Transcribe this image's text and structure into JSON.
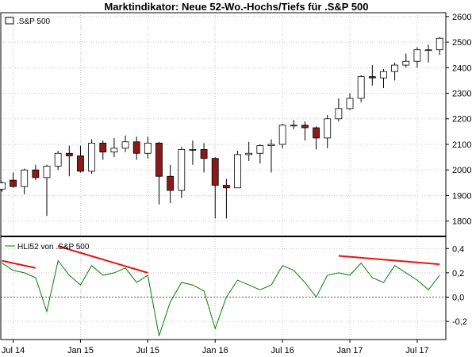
{
  "chart_data": [
    {
      "type": "candlestick",
      "title": "Marktindikator: Neue 52-Wo.-Hochs/Tiefs für .S&P 500",
      "legend": ".S&P 500",
      "legend_position": "top-left",
      "y_ticks": [
        "2600",
        "2500",
        "2400",
        "2300",
        "2200",
        "2100",
        "2000",
        "1900",
        "1800"
      ],
      "y_tick_values": [
        2600,
        2500,
        2400,
        2300,
        2200,
        2100,
        2000,
        1900,
        1800
      ],
      "ylim": [
        1740,
        2615
      ],
      "grid": true,
      "candle_colors": {
        "up": "#ffffff",
        "down": "#8b1a1a",
        "outline": "#000000"
      },
      "series": [
        {
          "name": ".S&P 500",
          "points": [
            {
              "x": "2014-06",
              "o": 1925,
              "h": 1955,
              "l": 1915,
              "c": 1950
            },
            {
              "x": "2014-07",
              "o": 1960,
              "h": 1990,
              "l": 1930,
              "c": 1935
            },
            {
              "x": "2014-08",
              "o": 1935,
              "h": 2005,
              "l": 1905,
              "c": 2000
            },
            {
              "x": "2014-09",
              "o": 2000,
              "h": 2020,
              "l": 1960,
              "c": 1970
            },
            {
              "x": "2014-10",
              "o": 1970,
              "h": 2020,
              "l": 1820,
              "c": 2015
            },
            {
              "x": "2014-11",
              "o": 2015,
              "h": 2075,
              "l": 2000,
              "c": 2065
            },
            {
              "x": "2014-12",
              "o": 2065,
              "h": 2095,
              "l": 1975,
              "c": 2055
            },
            {
              "x": "2015-01",
              "o": 2055,
              "h": 2095,
              "l": 1990,
              "c": 1995
            },
            {
              "x": "2015-02",
              "o": 1995,
              "h": 2120,
              "l": 1985,
              "c": 2105
            },
            {
              "x": "2015-03",
              "o": 2105,
              "h": 2115,
              "l": 2040,
              "c": 2070
            },
            {
              "x": "2015-04",
              "o": 2070,
              "h": 2125,
              "l": 2050,
              "c": 2085
            },
            {
              "x": "2015-05",
              "o": 2085,
              "h": 2135,
              "l": 2070,
              "c": 2110
            },
            {
              "x": "2015-06",
              "o": 2110,
              "h": 2130,
              "l": 2040,
              "c": 2065
            },
            {
              "x": "2015-07",
              "o": 2065,
              "h": 2130,
              "l": 2045,
              "c": 2105
            },
            {
              "x": "2015-08",
              "o": 2105,
              "h": 2110,
              "l": 1865,
              "c": 1975
            },
            {
              "x": "2015-09",
              "o": 1975,
              "h": 2020,
              "l": 1870,
              "c": 1920
            },
            {
              "x": "2015-10",
              "o": 1920,
              "h": 2090,
              "l": 1890,
              "c": 2080
            },
            {
              "x": "2015-11",
              "o": 2080,
              "h": 2115,
              "l": 2020,
              "c": 2080
            },
            {
              "x": "2015-12",
              "o": 2080,
              "h": 2105,
              "l": 1990,
              "c": 2045
            },
            {
              "x": "2016-01",
              "o": 2045,
              "h": 2050,
              "l": 1810,
              "c": 1940
            },
            {
              "x": "2016-02",
              "o": 1940,
              "h": 1965,
              "l": 1810,
              "c": 1930
            },
            {
              "x": "2016-03",
              "o": 1930,
              "h": 2075,
              "l": 1930,
              "c": 2060
            },
            {
              "x": "2016-04",
              "o": 2060,
              "h": 2110,
              "l": 2035,
              "c": 2065
            },
            {
              "x": "2016-05",
              "o": 2065,
              "h": 2100,
              "l": 2025,
              "c": 2095
            },
            {
              "x": "2016-06",
              "o": 2095,
              "h": 2120,
              "l": 1990,
              "c": 2100
            },
            {
              "x": "2016-07",
              "o": 2100,
              "h": 2180,
              "l": 2085,
              "c": 2175
            },
            {
              "x": "2016-08",
              "o": 2175,
              "h": 2195,
              "l": 2160,
              "c": 2175
            },
            {
              "x": "2016-09",
              "o": 2175,
              "h": 2190,
              "l": 2115,
              "c": 2165
            },
            {
              "x": "2016-10",
              "o": 2165,
              "h": 2170,
              "l": 2080,
              "c": 2125
            },
            {
              "x": "2016-11",
              "o": 2125,
              "h": 2215,
              "l": 2085,
              "c": 2200
            },
            {
              "x": "2016-12",
              "o": 2200,
              "h": 2280,
              "l": 2190,
              "c": 2240
            },
            {
              "x": "2017-01",
              "o": 2240,
              "h": 2300,
              "l": 2235,
              "c": 2280
            },
            {
              "x": "2017-02",
              "o": 2280,
              "h": 2370,
              "l": 2265,
              "c": 2365
            },
            {
              "x": "2017-03",
              "o": 2365,
              "h": 2410,
              "l": 2330,
              "c": 2360
            },
            {
              "x": "2017-04",
              "o": 2360,
              "h": 2395,
              "l": 2320,
              "c": 2385
            },
            {
              "x": "2017-05",
              "o": 2385,
              "h": 2420,
              "l": 2350,
              "c": 2410
            },
            {
              "x": "2017-06",
              "o": 2410,
              "h": 2455,
              "l": 2400,
              "c": 2425
            },
            {
              "x": "2017-07",
              "o": 2425,
              "h": 2480,
              "l": 2400,
              "c": 2470
            },
            {
              "x": "2017-08",
              "o": 2470,
              "h": 2490,
              "l": 2420,
              "c": 2470
            },
            {
              "x": "2017-09",
              "o": 2470,
              "h": 2520,
              "l": 2450,
              "c": 2515
            }
          ]
        }
      ]
    },
    {
      "type": "line",
      "legend": "HLI52 von .S&P 500",
      "legend_position": "top-left",
      "y_ticks": [
        "0,4",
        "0,2",
        "0,0",
        "-0,2"
      ],
      "y_tick_values": [
        0.4,
        0.2,
        0.0,
        -0.2
      ],
      "ylim": [
        -0.35,
        0.5
      ],
      "zero_line": "dotted",
      "grid": true,
      "line_color": "#008000",
      "series": [
        {
          "name": "HLI52 von .S&P 500",
          "x": [
            "2014-06",
            "2014-07",
            "2014-08",
            "2014-09",
            "2014-10",
            "2014-11",
            "2014-12",
            "2015-01",
            "2015-02",
            "2015-03",
            "2015-04",
            "2015-05",
            "2015-06",
            "2015-07",
            "2015-08",
            "2015-09",
            "2015-10",
            "2015-11",
            "2015-12",
            "2016-01",
            "2016-02",
            "2016-03",
            "2016-04",
            "2016-05",
            "2016-06",
            "2016-07",
            "2016-08",
            "2016-09",
            "2016-10",
            "2016-11",
            "2016-12",
            "2017-01",
            "2017-02",
            "2017-03",
            "2017-04",
            "2017-05",
            "2017-06",
            "2017-07",
            "2017-08",
            "2017-09"
          ],
          "y": [
            0.28,
            0.22,
            0.2,
            0.16,
            -0.12,
            0.3,
            0.18,
            0.1,
            0.26,
            0.18,
            0.2,
            0.24,
            0.12,
            0.18,
            -0.32,
            -0.04,
            0.12,
            0.1,
            0.05,
            -0.26,
            0.0,
            0.14,
            0.1,
            0.06,
            0.1,
            0.26,
            0.22,
            0.12,
            0.0,
            0.18,
            0.2,
            0.18,
            0.28,
            0.16,
            0.12,
            0.26,
            0.2,
            0.14,
            0.06,
            0.18
          ]
        }
      ],
      "divergence_lines": [
        {
          "from": {
            "x": "2014-06",
            "y": 0.3
          },
          "to": {
            "x": "2014-09",
            "y": 0.24
          }
        },
        {
          "from": {
            "x": "2014-11",
            "y": 0.42
          },
          "to": {
            "x": "2015-07",
            "y": 0.2
          }
        },
        {
          "from": {
            "x": "2016-12",
            "y": 0.34
          },
          "to": {
            "x": "2017-09",
            "y": 0.27
          }
        }
      ],
      "divergence_color": "#ee1111"
    }
  ],
  "x_axis": {
    "ticks": [
      {
        "x": "2014-07",
        "label": "Jul 14"
      },
      {
        "x": "2015-01",
        "label": "Jan 15"
      },
      {
        "x": "2015-07",
        "label": "Jul 15"
      },
      {
        "x": "2016-01",
        "label": "Jan 16"
      },
      {
        "x": "2016-07",
        "label": "Jul 16"
      },
      {
        "x": "2017-01",
        "label": "Jan 17"
      },
      {
        "x": "2017-07",
        "label": "Jul 17"
      }
    ]
  }
}
